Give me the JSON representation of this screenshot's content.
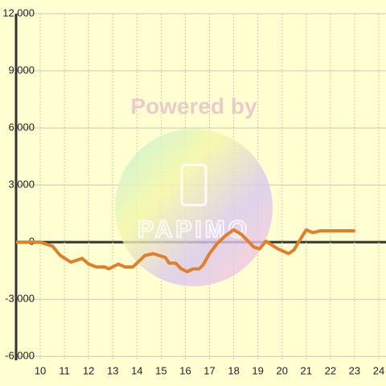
{
  "chart_data": {
    "type": "line",
    "watermark": {
      "title": "Powered by",
      "logo": "PAPIMO"
    },
    "x": [
      9,
      10,
      10.5,
      10.83,
      11.27,
      11.73,
      12,
      12.33,
      12.67,
      12.83,
      13.23,
      13.5,
      13.83,
      14.33,
      14.67,
      15.17,
      15.33,
      15.6,
      15.83,
      16.07,
      16.33,
      16.57,
      16.73,
      17,
      17.33,
      17.67,
      18,
      18.33,
      18.83,
      19.07,
      19.33,
      19.83,
      20.27,
      20.5,
      20.73,
      21,
      21.27,
      21.6,
      23.03
    ],
    "series": [
      {
        "color": "#e0802a",
        "values": [
          0,
          0,
          -200,
          -700,
          -1050,
          -850,
          -1150,
          -1300,
          -1300,
          -1400,
          -1150,
          -1300,
          -1300,
          -700,
          -600,
          -800,
          -1100,
          -1100,
          -1400,
          -1550,
          -1400,
          -1400,
          -1200,
          -600,
          -50,
          350,
          650,
          400,
          -250,
          -350,
          50,
          -350,
          -600,
          -400,
          100,
          650,
          500,
          600,
          600
        ]
      }
    ],
    "xlim": [
      9,
      24.3
    ],
    "xticks": [
      10,
      11,
      12,
      13,
      14,
      15,
      16,
      17,
      18,
      19,
      20,
      21,
      22,
      23,
      24
    ],
    "ylim": [
      -6200,
      12000
    ],
    "yticks": [
      {
        "value": -6000,
        "label": "-6,000"
      },
      {
        "value": -3000,
        "label": "-3,000"
      },
      0,
      {
        "value": 3000,
        "label": "3,000"
      },
      {
        "value": 6000,
        "label": "6,000"
      },
      {
        "value": 9000,
        "label": "9,000"
      },
      {
        "value": 12000,
        "label": "12,000"
      }
    ],
    "grid": true
  }
}
